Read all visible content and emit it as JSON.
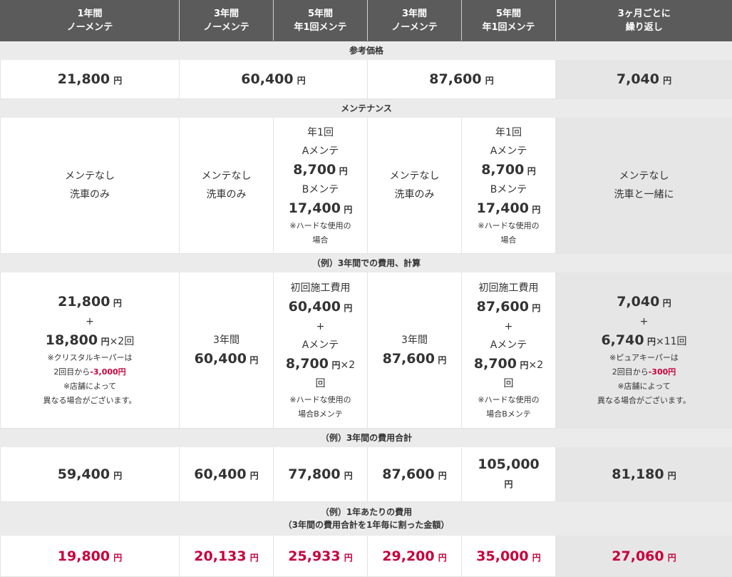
{
  "headers": [
    {
      "line1": "1年間",
      "line2": "ノーメンテ"
    },
    {
      "line1": "3年間",
      "line2": "ノーメンテ"
    },
    {
      "line1": "5年間",
      "line2": "年1回メンテ"
    },
    {
      "line1": "3年間",
      "line2": "ノーメンテ"
    },
    {
      "line1": "5年間",
      "line2": "年1回メンテ"
    },
    {
      "line1": "3ヶ月ごとに",
      "line2": "繰り返し"
    }
  ],
  "yen": "円",
  "sections": {
    "reference_price": "参考価格",
    "maintenance": "メンテナンス",
    "calc": "（例）3年間での費用、計算",
    "total": "（例）3年間の費用合計",
    "per_year_1": "（例）1年あたりの費用",
    "per_year_2": "（3年間の費用合計を1年毎に割った金額）"
  },
  "prices": {
    "c1": "21,800",
    "c23": "60,400",
    "c45": "87,600",
    "c6": "7,040"
  },
  "maint": {
    "none": "メンテなし",
    "wash_only": "洗車のみ",
    "wash_together": "洗車と一緒に",
    "once_a_year": "年1回",
    "a_mainte": "Aメンテ",
    "a_price": "8,700",
    "b_mainte": "Bメンテ",
    "b_price": "17,400",
    "hard_use_1": "※ハードな使用の",
    "hard_use_2": "場合"
  },
  "calc": {
    "c1": {
      "base": "21,800",
      "plus": "+",
      "sub": "18,800",
      "times": "×2回",
      "note1": "※クリスタルキーパーは",
      "note2a": "2回目から",
      "note2b": "-3,000円",
      "note3": "※店舗によって",
      "note4": "異なる場合がございます。"
    },
    "c2": {
      "label": "3年間",
      "value": "60,400"
    },
    "c3": {
      "label": "初回施工費用",
      "value": "60,400",
      "plus": "+",
      "a": "Aメンテ",
      "a_value": "8,700",
      "times": "×2",
      "times2": "回",
      "note1": "※ハードな使用の",
      "note2": "場合Bメンテ"
    },
    "c4": {
      "label": "3年間",
      "value": "87,600"
    },
    "c5": {
      "label": "初回施工費用",
      "value": "87,600",
      "plus": "+",
      "a": "Aメンテ",
      "a_value": "8,700",
      "times": "×2",
      "times2": "回",
      "note1": "※ハードな使用の",
      "note2": "場合Bメンテ"
    },
    "c6": {
      "base": "7,040",
      "plus": "+",
      "sub": "6,740",
      "times": "×11回",
      "note1": "※ピュアキーパーは",
      "note2a": "2回目から",
      "note2b": "-300円",
      "note3": "※店舗によって",
      "note4": "異なる場合がございます。"
    }
  },
  "totals": [
    "59,400",
    "60,400",
    "77,800",
    "87,600",
    "105,000",
    "81,180"
  ],
  "per_year": [
    "19,800",
    "20,133",
    "25,933",
    "29,200",
    "35,000",
    "27,060"
  ],
  "colors": {
    "header_bg": "#5b5b5b",
    "section_bg": "#ebebeb",
    "highlight_bg": "#e6e6e6",
    "accent_red": "#c8003c"
  }
}
